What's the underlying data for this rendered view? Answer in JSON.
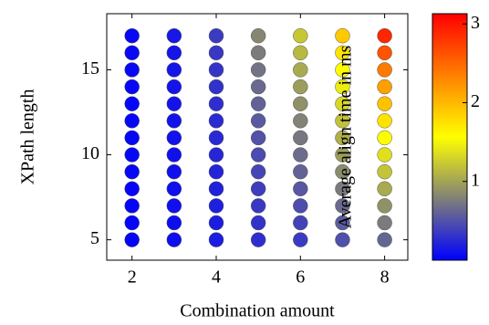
{
  "chart_data": {
    "type": "scatter",
    "xlabel": "Combination amount",
    "ylabel": "XPath length",
    "colorbar_label": "Average align time in ms",
    "xlim": [
      1.4,
      8.55
    ],
    "xticks": [
      2,
      4,
      6,
      8
    ],
    "ylim": [
      3.8,
      18.3
    ],
    "yticks": [
      5,
      10,
      15
    ],
    "clim": [
      0,
      3.13
    ],
    "cticks": [
      1,
      2,
      3
    ],
    "colormap": [
      "#0000ff",
      "#808078",
      "#ffff00",
      "#ff8000",
      "#ff0000"
    ],
    "x": [
      2,
      2,
      2,
      2,
      2,
      2,
      2,
      2,
      2,
      2,
      2,
      2,
      2,
      3,
      3,
      3,
      3,
      3,
      3,
      3,
      3,
      3,
      3,
      3,
      3,
      3,
      4,
      4,
      4,
      4,
      4,
      4,
      4,
      4,
      4,
      4,
      4,
      4,
      4,
      5,
      5,
      5,
      5,
      5,
      5,
      5,
      5,
      5,
      5,
      5,
      5,
      5,
      6,
      6,
      6,
      6,
      6,
      6,
      6,
      6,
      6,
      6,
      6,
      6,
      6,
      7,
      7,
      7,
      7,
      7,
      7,
      7,
      7,
      7,
      7,
      7,
      7,
      7,
      8,
      8,
      8,
      8,
      8,
      8,
      8,
      8,
      8,
      8,
      8,
      8,
      8
    ],
    "y": [
      5,
      6,
      7,
      8,
      9,
      10,
      11,
      12,
      13,
      14,
      15,
      16,
      17,
      5,
      6,
      7,
      8,
      9,
      10,
      11,
      12,
      13,
      14,
      15,
      16,
      17,
      5,
      6,
      7,
      8,
      9,
      10,
      11,
      12,
      13,
      14,
      15,
      16,
      17,
      5,
      6,
      7,
      8,
      9,
      10,
      11,
      12,
      13,
      14,
      15,
      16,
      17,
      5,
      6,
      7,
      8,
      9,
      10,
      11,
      12,
      13,
      14,
      15,
      16,
      17,
      5,
      6,
      7,
      8,
      9,
      10,
      11,
      12,
      13,
      14,
      15,
      16,
      17,
      5,
      6,
      7,
      8,
      9,
      10,
      11,
      12,
      13,
      14,
      15,
      16,
      17
    ],
    "c": [
      0.03,
      0.03,
      0.03,
      0.03,
      0.04,
      0.04,
      0.04,
      0.04,
      0.04,
      0.05,
      0.05,
      0.05,
      0.05,
      0.08,
      0.08,
      0.09,
      0.09,
      0.1,
      0.1,
      0.11,
      0.11,
      0.12,
      0.12,
      0.13,
      0.13,
      0.14,
      0.17,
      0.18,
      0.19,
      0.2,
      0.22,
      0.23,
      0.25,
      0.26,
      0.28,
      0.3,
      0.32,
      0.34,
      0.36,
      0.28,
      0.31,
      0.34,
      0.38,
      0.42,
      0.46,
      0.5,
      0.55,
      0.6,
      0.65,
      0.7,
      0.76,
      0.82,
      0.36,
      0.41,
      0.47,
      0.53,
      0.6,
      0.66,
      0.73,
      0.8,
      0.88,
      0.96,
      1.04,
      1.13,
      1.22,
      0.48,
      0.56,
      0.65,
      0.75,
      0.85,
      0.96,
      1.07,
      1.19,
      1.32,
      1.45,
      1.59,
      1.74,
      1.9,
      0.62,
      0.75,
      0.89,
      1.04,
      1.2,
      1.37,
      1.55,
      1.74,
      1.94,
      2.15,
      2.38,
      2.62,
      2.9
    ]
  }
}
